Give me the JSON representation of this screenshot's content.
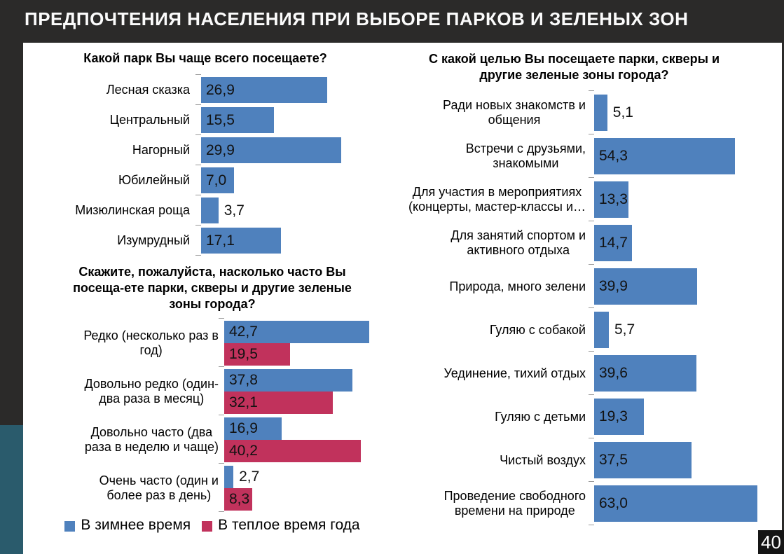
{
  "slide": {
    "title": "ПРЕДПОЧТЕНИЯ НАСЕЛЕНИЯ ПРИ ВЫБОРЕ ПАРКОВ И ЗЕЛЕНЫХ ЗОН",
    "page_number": "40"
  },
  "colors": {
    "background": "#2b2a29",
    "accent_teal": "#2a5b6c",
    "bar_blue": "#4f81bd",
    "bar_red": "#c1325c",
    "content_bg": "#ffffff"
  },
  "chart_data": [
    {
      "type": "bar",
      "orientation": "horizontal",
      "title": "Какой парк Вы чаще всего посещаете?",
      "categories": [
        "Лесная сказка",
        "Центральный",
        "Нагорный",
        "Юбилейный",
        "Мизюлинская роща",
        "Изумрудный"
      ],
      "values": [
        26.9,
        15.5,
        29.9,
        7.0,
        3.7,
        17.1
      ],
      "value_labels": [
        "26,9",
        "15,5",
        "29,9",
        "7,0",
        "3,7",
        "17,1"
      ],
      "bar_color": "#4f81bd",
      "xlim": [
        0,
        31
      ],
      "grid": false,
      "legend_position": "none"
    },
    {
      "type": "bar",
      "orientation": "horizontal",
      "title": "Скажите, пожалуйста, насколько часто Вы\nпосеща-ете парки, скверы и другие зеленые\nзоны города?",
      "categories": [
        "Редко (несколько раз в\nгод)",
        "Довольно редко (один-\nдва раза в месяц)",
        "Довольно часто (два\nраза в неделю и чаще)",
        "Очень часто (один и\nболее раз в день)"
      ],
      "series": [
        {
          "name": "В зимнее время",
          "color": "#4f81bd",
          "values": [
            42.7,
            37.8,
            16.9,
            2.7
          ],
          "value_labels": [
            "42,7",
            "37,8",
            "16,9",
            "2,7"
          ]
        },
        {
          "name": "В теплое время года",
          "color": "#c1325c",
          "values": [
            19.5,
            32.1,
            40.2,
            8.3
          ],
          "value_labels": [
            "19,5",
            "32,1",
            "40,2",
            "8,3"
          ]
        }
      ],
      "xlim": [
        0,
        44
      ],
      "grid": false,
      "legend_position": "bottom"
    },
    {
      "type": "bar",
      "orientation": "horizontal",
      "title": "С какой целью Вы посещаете парки, скверы и\nдругие зеленые зоны города?",
      "categories": [
        "Ради новых знакомств и\nобщения",
        "Встречи с друзьями,\nзнакомыми",
        "Для участия в мероприятиях\n(концерты, мастер-классы и…",
        "Для занятий спортом и\nактивного отдыха",
        "Природа, много зелени",
        "Гуляю с собакой",
        "Уединение, тихий отдых",
        "Гуляю с детьми",
        "Чистый воздух",
        "Проведение свободного\nвремени на природе"
      ],
      "values": [
        5.1,
        54.3,
        13.3,
        14.7,
        39.9,
        5.7,
        39.6,
        19.3,
        37.5,
        63.0
      ],
      "value_labels": [
        "5,1",
        "54,3",
        "13,3",
        "14,7",
        "39,9",
        "5,7",
        "39,6",
        "19,3",
        "37,5",
        "63,0"
      ],
      "bar_color": "#4f81bd",
      "xlim": [
        0,
        65
      ],
      "grid": false,
      "legend_position": "none"
    }
  ]
}
